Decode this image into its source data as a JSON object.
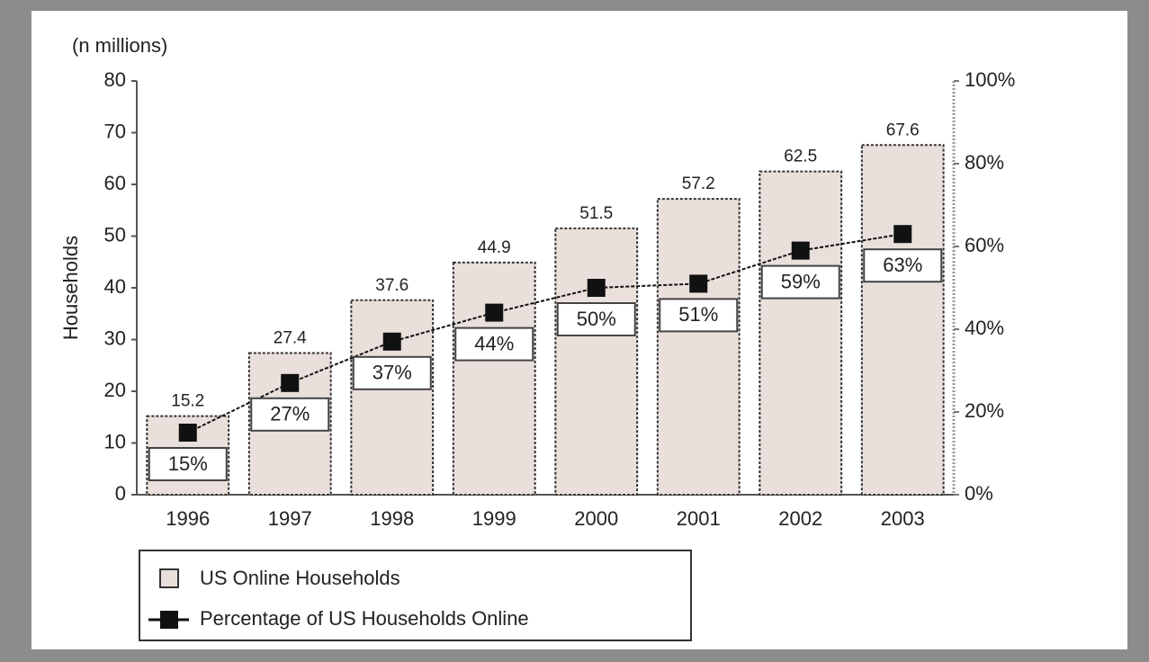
{
  "chart_data": {
    "type": "bar",
    "annotation": "(n millions)",
    "y_label": "Households",
    "categories": [
      "1996",
      "1997",
      "1998",
      "1999",
      "2000",
      "2001",
      "2002",
      "2003"
    ],
    "series": [
      {
        "name": "US Online Households",
        "color": "#e9dfdb",
        "values": [
          15.2,
          27.4,
          37.6,
          44.9,
          51.5,
          57.2,
          62.5,
          67.6
        ]
      },
      {
        "name": "Percentage of US Households Online",
        "color": "#111111",
        "type": "line",
        "axis": "y2",
        "values": [
          15,
          27,
          37,
          44,
          50,
          51,
          59,
          63
        ],
        "value_labels": [
          "15%",
          "27%",
          "37%",
          "44%",
          "50%",
          "51%",
          "59%",
          "63%"
        ]
      }
    ],
    "ylim": [
      0,
      80
    ],
    "yticks": [
      0,
      10,
      20,
      30,
      40,
      50,
      60,
      70,
      80
    ],
    "y2lim": [
      0,
      100
    ],
    "y2ticks": [
      {
        "value": 0,
        "label": "0%"
      },
      {
        "value": 20,
        "label": "20%"
      },
      {
        "value": 40,
        "label": "40%"
      },
      {
        "value": 60,
        "label": "60%"
      },
      {
        "value": 80,
        "label": "80%"
      },
      {
        "value": 100,
        "label": "100%"
      }
    ],
    "legend": "bottom-left"
  }
}
